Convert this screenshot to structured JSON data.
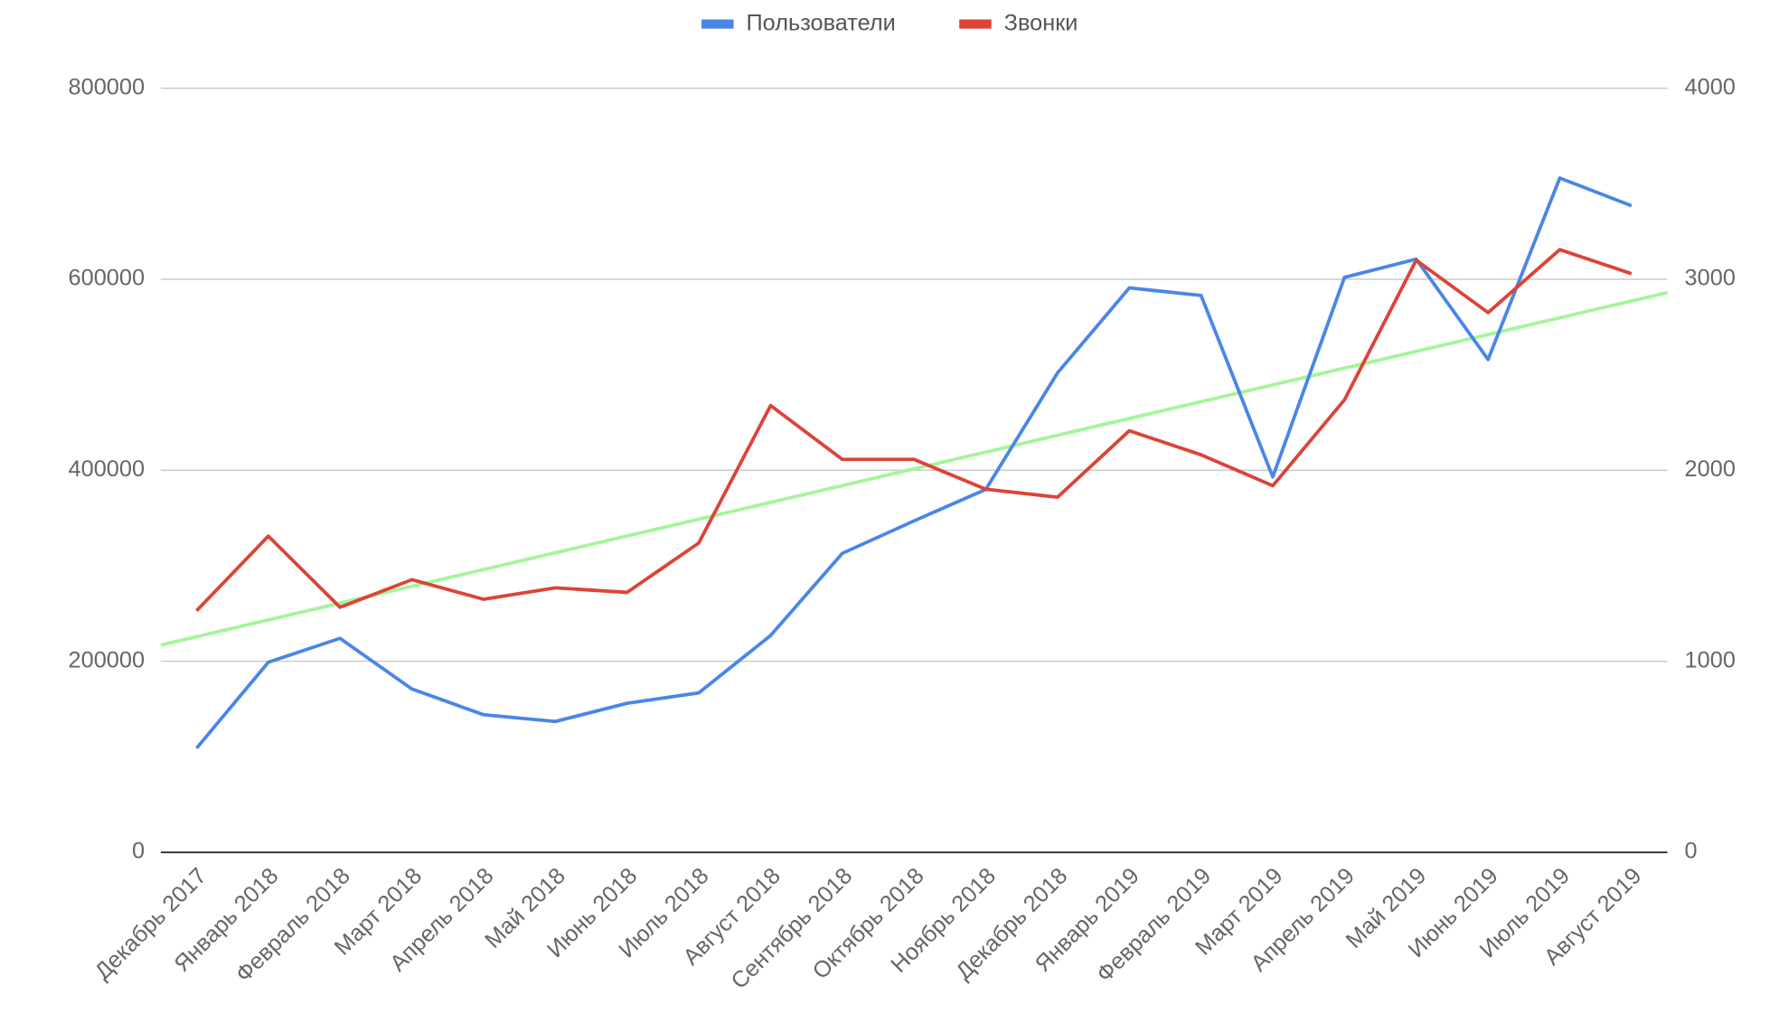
{
  "chart_data": {
    "type": "line",
    "categories": [
      "Декабрь 2017",
      "Январь 2018",
      "Февраль 2018",
      "Март 2018",
      "Апрель 2018",
      "Май 2018",
      "Июнь 2018",
      "Июль 2018",
      "Август 2018",
      "Сентябрь 2018",
      "Октябрь 2018",
      "Ноябрь 2018",
      "Декабрь 2018",
      "Январь 2019",
      "Февраль 2019",
      "Март 2019",
      "Апрель 2019",
      "Май 2019",
      "Июнь 2019",
      "Июль 2019",
      "Август 2019"
    ],
    "series": [
      {
        "name": "Пользователи",
        "color": "#4a86e8",
        "axis": "y",
        "values": [
          109000,
          199000,
          224000,
          171000,
          144000,
          137000,
          156000,
          167000,
          227000,
          313000,
          347000,
          380000,
          502000,
          591000,
          583000,
          393000,
          602000,
          621000,
          516000,
          706000,
          677000
        ]
      },
      {
        "name": "Звонки",
        "color": "#db4437",
        "axis": "y2",
        "values": [
          1265,
          1655,
          1283,
          1427,
          1325,
          1385,
          1361,
          1619,
          2339,
          2057,
          2057,
          1901,
          1859,
          2207,
          2081,
          1919,
          2369,
          3100,
          2825,
          3155,
          3029
        ]
      }
    ],
    "trendline": {
      "color": "#a4f59a",
      "axis": "y",
      "values": [
        217000,
        586000
      ]
    },
    "ylim": [
      0,
      800000
    ],
    "yticks": [
      0,
      200000,
      400000,
      600000,
      800000
    ],
    "y2lim": [
      0,
      4000
    ],
    "y2ticks": [
      0,
      1000,
      2000,
      3000,
      4000
    ],
    "grid": true,
    "legend": "top"
  }
}
